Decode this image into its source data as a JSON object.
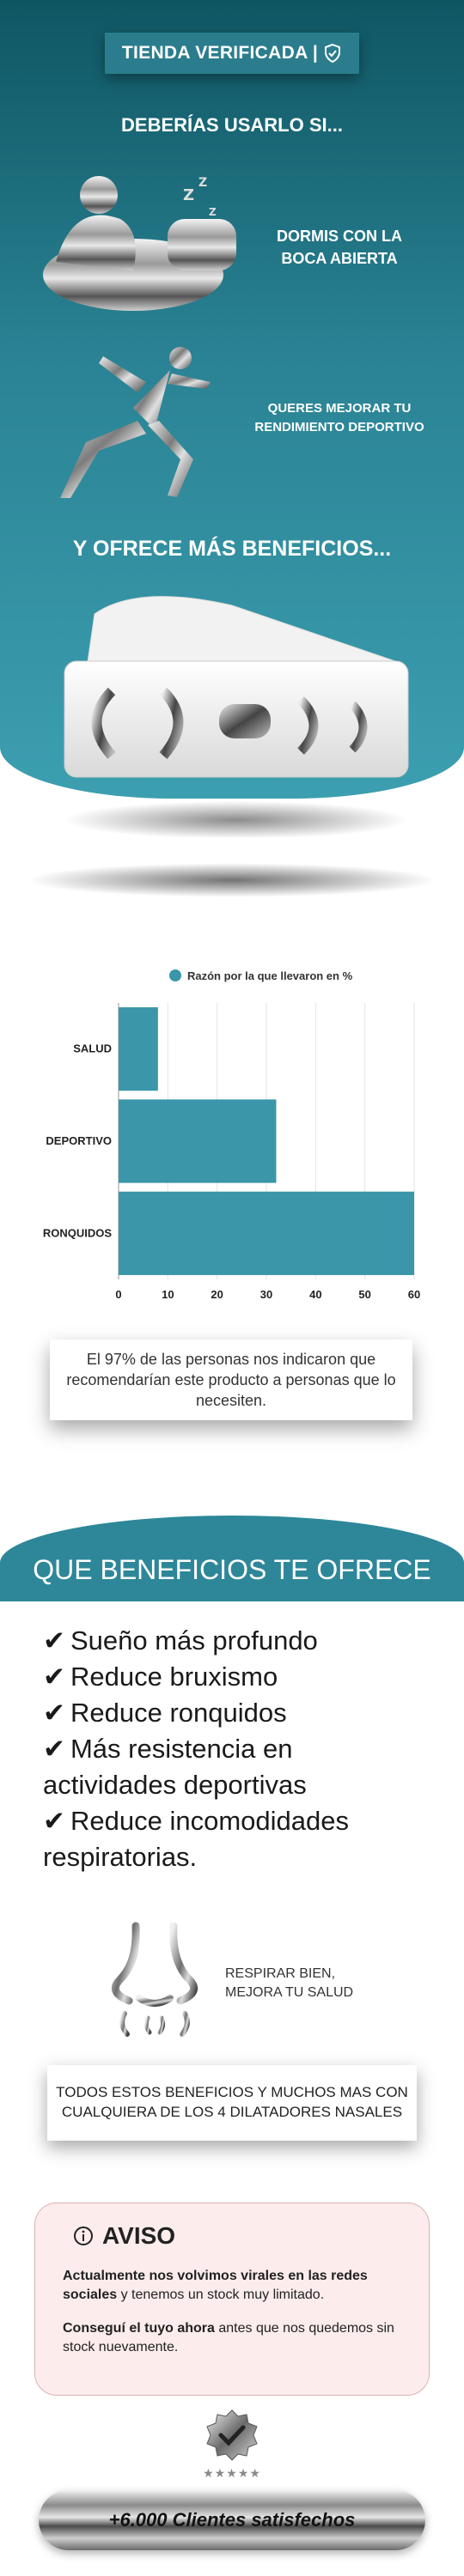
{
  "hero": {
    "badge": "TIENDA VERIFICADA |",
    "heading": "DEBERÍAS USARLO SI...",
    "item1": {
      "line1": "DORMIS CON LA",
      "line2": "BOCA ABIERTA"
    },
    "item2": {
      "line1": "QUERES MEJORAR TU",
      "line2": "RENDIMIENTO DEPORTIVO"
    },
    "more": "Y OFRECE MÁS BENEFICIOS..."
  },
  "chart_data": {
    "type": "bar",
    "orientation": "horizontal",
    "legend": "Razón por la que llevaron en %",
    "categories": [
      "SALUD",
      "DEPORTIVO",
      "RONQUIDOS"
    ],
    "values": [
      8,
      32,
      60
    ],
    "xlim": [
      0,
      60
    ],
    "xticks": [
      "0",
      "10",
      "20",
      "30",
      "40",
      "50",
      "60"
    ],
    "bar_color": "#3a96a8",
    "grid": true
  },
  "note": "El 97% de las personas nos indicaron que recomendarían este producto a personas que lo necesiten.",
  "banner": "QUE BENEFICIOS TE OFRECE",
  "benefits": [
    {
      "check": "✔",
      "line1": "Sueño más profundo"
    },
    {
      "check": "✔",
      "line1": "Reduce bruxismo"
    },
    {
      "check": "✔",
      "line1": "Reduce ronquidos"
    },
    {
      "check": "✔",
      "line1": "Más resistencia en",
      "line2": "actividades deportivas"
    },
    {
      "check": "✔",
      "line1": "Reduce incomodidades",
      "line2": "respiratorias."
    }
  ],
  "nose": {
    "line1": "RESPIRAR BIEN,",
    "line2": "MEJORA TU SALUD"
  },
  "info": "TODOS ESTOS BENEFICIOS Y MUCHOS MAS CON CUALQUIERA DE LOS 4 DILATADORES NASALES",
  "aviso": {
    "title": "AVISO",
    "p1_bold": "Actualmente nos volvimos virales en las redes sociales",
    "p1_rest": " y tenemos un stock muy limitado.",
    "p2_bold": "Conseguí el tuyo ahora",
    "p2_rest": " antes que nos quedemos sin stock nuevamente."
  },
  "stars": "★★★★★",
  "clients": "+6.000 Clientes satisfechos",
  "colors": {
    "teal_dark": "#0f5663",
    "teal": "#3c9fb0",
    "bar": "#3a96a8"
  }
}
